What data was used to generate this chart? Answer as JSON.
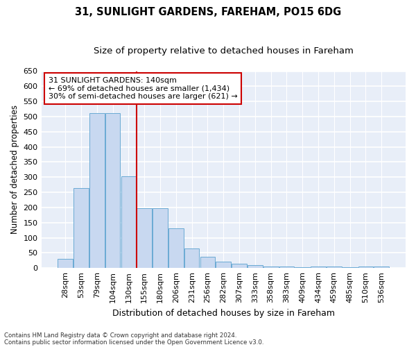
{
  "title": "31, SUNLIGHT GARDENS, FAREHAM, PO15 6DG",
  "subtitle": "Size of property relative to detached houses in Fareham",
  "xlabel": "Distribution of detached houses by size in Fareham",
  "ylabel": "Number of detached properties",
  "footnote1": "Contains HM Land Registry data © Crown copyright and database right 2024.",
  "footnote2": "Contains public sector information licensed under the Open Government Licence v3.0.",
  "annotation_line1": "31 SUNLIGHT GARDENS: 140sqm",
  "annotation_line2": "← 69% of detached houses are smaller (1,434)",
  "annotation_line3": "30% of semi-detached houses are larger (621) →",
  "bar_labels": [
    "28sqm",
    "53sqm",
    "79sqm",
    "104sqm",
    "130sqm",
    "155sqm",
    "180sqm",
    "206sqm",
    "231sqm",
    "256sqm",
    "282sqm",
    "307sqm",
    "333sqm",
    "358sqm",
    "383sqm",
    "409sqm",
    "434sqm",
    "459sqm",
    "485sqm",
    "510sqm",
    "536sqm"
  ],
  "bar_values": [
    30,
    263,
    512,
    512,
    302,
    197,
    197,
    130,
    65,
    38,
    22,
    15,
    10,
    5,
    5,
    2,
    5,
    5,
    2,
    5,
    5
  ],
  "bar_color": "#c8d8f0",
  "bar_edge_color": "#6aaad4",
  "red_line_x": 4.5,
  "ylim": [
    0,
    650
  ],
  "yticks": [
    0,
    50,
    100,
    150,
    200,
    250,
    300,
    350,
    400,
    450,
    500,
    550,
    600,
    650
  ],
  "plot_bg_color": "#e8eef8",
  "fig_bg_color": "#ffffff",
  "grid_color": "#ffffff",
  "title_fontsize": 10.5,
  "subtitle_fontsize": 9.5,
  "ylabel_fontsize": 8.5,
  "xlabel_fontsize": 9,
  "tick_fontsize": 8,
  "annot_fontsize": 8
}
